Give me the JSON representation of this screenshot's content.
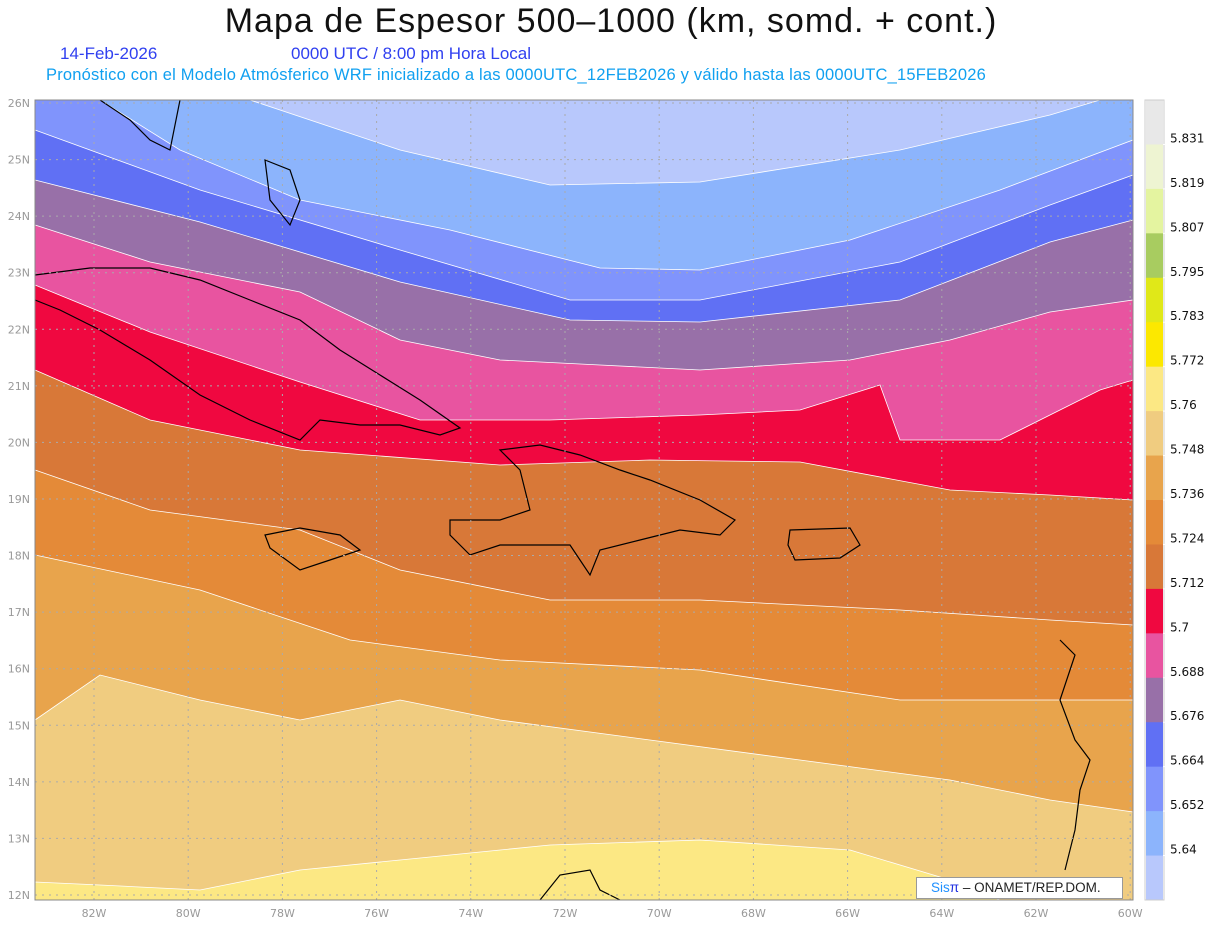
{
  "header": {
    "title": "Mapa de Espesor 500–1000 (km, somd. + cont.)",
    "date": "14-Feb-2026",
    "time": "0000 UTC / 8:00 pm Hora Local",
    "forecast_note": "Pronóstico con el Modelo Atmósferico WRF inicializado a las 0000UTC_12FEB2026 y válido hasta las  0000UTC_15FEB2026"
  },
  "map": {
    "lon_range": [
      -83.25,
      -60
    ],
    "lat_range": [
      12,
      26.05
    ],
    "lon_ticks": [
      "82W",
      "80W",
      "78W",
      "76W",
      "74W",
      "72W",
      "70W",
      "68W",
      "66W",
      "64W",
      "62W",
      "60W"
    ],
    "lat_ticks": [
      "26N",
      "25N",
      "24N",
      "23N",
      "22N",
      "21N",
      "20N",
      "19N",
      "18N",
      "17N",
      "16N",
      "15N",
      "14N",
      "13N",
      "12N"
    ]
  },
  "colorbar": {
    "labels": [
      "5.831",
      "5.819",
      "5.807",
      "5.795",
      "5.783",
      "5.772",
      "5.76",
      "5.748",
      "5.736",
      "5.724",
      "5.712",
      "5.7",
      "5.688",
      "5.676",
      "5.664",
      "5.652",
      "5.64"
    ],
    "colors_top_to_bottom": [
      "#e8e8e8",
      "#eef4d2",
      "#e4f4a0",
      "#a8cc60",
      "#e0e818",
      "#fce800",
      "#fce884",
      "#f0cc80",
      "#e8a44c",
      "#e48a38",
      "#d87838",
      "#f00840",
      "#e854a0",
      "#9870a8",
      "#6070f4",
      "#8094fc",
      "#8cb4fc",
      "#b8c8fc"
    ]
  },
  "logo": {
    "sis": "Sis",
    "pi": "π",
    "org": " –  ONAMET/REP.DOM."
  }
}
